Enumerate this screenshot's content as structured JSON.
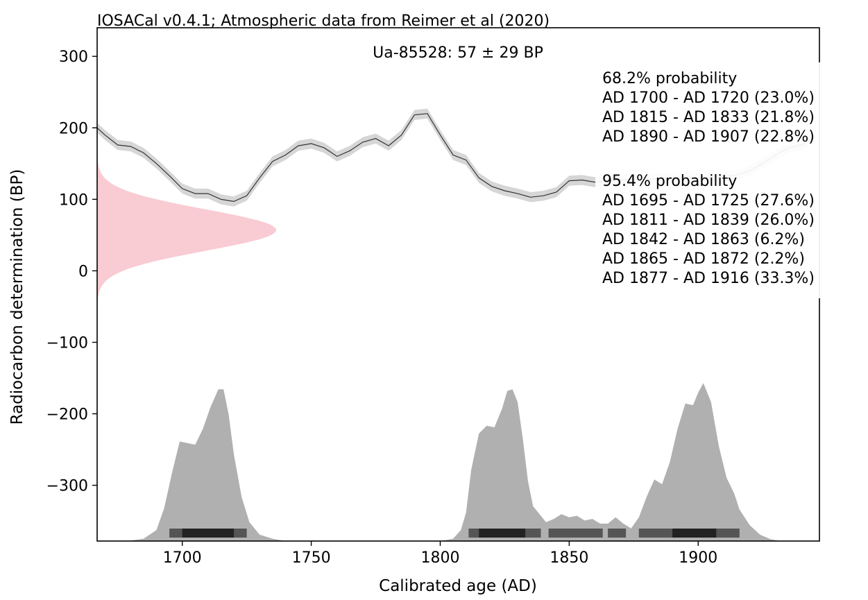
{
  "chart_data": {
    "type": "area",
    "title": "IOSACal v0.4.1; Atmospheric data from Reimer et al (2020)",
    "xlabel": "Calibrated age (AD)",
    "ylabel": "Radiocarbon determination (BP)",
    "xlim": [
      1667,
      1947
    ],
    "ylim": [
      -378,
      340
    ],
    "x_ticks": [
      1700,
      1750,
      1800,
      1850,
      1900
    ],
    "y_ticks": [
      300,
      200,
      100,
      0,
      -100,
      -200,
      -300
    ],
    "x_tick_labels": [
      "1700",
      "1750",
      "1800",
      "1850",
      "1900"
    ],
    "y_tick_labels": [
      "300",
      "200",
      "100",
      "0",
      "−100",
      "−200",
      "−300"
    ],
    "grid": false,
    "sample_label": "Ua-85528: 57 ± 29 BP",
    "sample": {
      "mean_bp": 57,
      "sigma": 29
    },
    "ranges_68": {
      "title": "68.2% probability",
      "lines": [
        "AD 1700 - AD 1720 (23.0%)",
        "AD 1815 - AD 1833 (21.8%)",
        "AD 1890 - AD 1907 (22.8%)"
      ],
      "intervals": [
        [
          1700,
          1720
        ],
        [
          1815,
          1833
        ],
        [
          1890,
          1907
        ]
      ]
    },
    "ranges_95": {
      "title": "95.4% probability",
      "lines": [
        "AD 1695 - AD 1725 (27.6%)",
        "AD 1811 - AD 1839 (26.0%)",
        "AD 1842 - AD 1863 (6.2%)",
        "AD 1865 - AD 1872 (2.2%)",
        "AD 1877 - AD 1916 (33.3%)"
      ],
      "intervals": [
        [
          1695,
          1725
        ],
        [
          1811,
          1839
        ],
        [
          1842,
          1863
        ],
        [
          1865,
          1872
        ],
        [
          1877,
          1916
        ]
      ]
    },
    "calibration_curve": {
      "x": [
        1667,
        1670,
        1675,
        1680,
        1685,
        1690,
        1695,
        1700,
        1705,
        1710,
        1715,
        1720,
        1725,
        1730,
        1735,
        1740,
        1745,
        1750,
        1755,
        1760,
        1765,
        1770,
        1775,
        1780,
        1785,
        1790,
        1795,
        1800,
        1805,
        1810,
        1815,
        1820,
        1825,
        1830,
        1835,
        1840,
        1845,
        1850,
        1855,
        1860,
        1865,
        1870,
        1875,
        1880,
        1885,
        1890,
        1895,
        1900,
        1905,
        1910,
        1915,
        1920,
        1925,
        1930,
        1935,
        1940,
        1945
      ],
      "y": [
        200,
        190,
        176,
        174,
        165,
        150,
        133,
        115,
        108,
        108,
        100,
        97,
        105,
        130,
        153,
        162,
        175,
        178,
        172,
        160,
        168,
        180,
        185,
        175,
        190,
        218,
        220,
        190,
        162,
        155,
        130,
        118,
        112,
        108,
        103,
        105,
        110,
        126,
        127,
        124,
        126,
        127,
        128,
        128,
        129,
        130,
        131,
        130,
        131,
        132,
        134,
        140,
        150,
        162,
        172,
        176,
        186
      ],
      "band_width": 7
    },
    "calibrated_distribution": {
      "x": [
        1667,
        1680,
        1685,
        1690,
        1693,
        1696,
        1699,
        1702,
        1705,
        1708,
        1711,
        1714,
        1716,
        1718,
        1720,
        1723,
        1726,
        1730,
        1735,
        1740,
        1760,
        1790,
        1800,
        1805,
        1808,
        1810,
        1812,
        1815,
        1818,
        1821,
        1824,
        1826,
        1828,
        1830,
        1832,
        1834,
        1836,
        1838,
        1841,
        1844,
        1847,
        1850,
        1853,
        1856,
        1859,
        1862,
        1865,
        1868,
        1871,
        1874,
        1877,
        1880,
        1883,
        1886,
        1889,
        1892,
        1895,
        1898,
        1900,
        1902,
        1905,
        1908,
        1911,
        1914,
        1916,
        1920,
        1924,
        1928,
        1932,
        1947
      ],
      "y": [
        0,
        0.003,
        0.015,
        0.07,
        0.21,
        0.43,
        0.63,
        0.62,
        0.61,
        0.71,
        0.85,
        0.96,
        0.96,
        0.8,
        0.55,
        0.28,
        0.12,
        0.04,
        0.015,
        0,
        0,
        0,
        0,
        0.015,
        0.07,
        0.18,
        0.45,
        0.68,
        0.73,
        0.72,
        0.84,
        0.95,
        0.96,
        0.88,
        0.65,
        0.38,
        0.22,
        0.18,
        0.12,
        0.14,
        0.17,
        0.15,
        0.16,
        0.13,
        0.14,
        0.11,
        0.11,
        0.15,
        0.11,
        0.08,
        0.15,
        0.28,
        0.39,
        0.36,
        0.5,
        0.71,
        0.87,
        0.86,
        0.94,
        1.0,
        0.88,
        0.6,
        0.4,
        0.3,
        0.2,
        0.1,
        0.04,
        0.012,
        0,
        0
      ],
      "baseline": -378,
      "height_bp": 221
    }
  }
}
